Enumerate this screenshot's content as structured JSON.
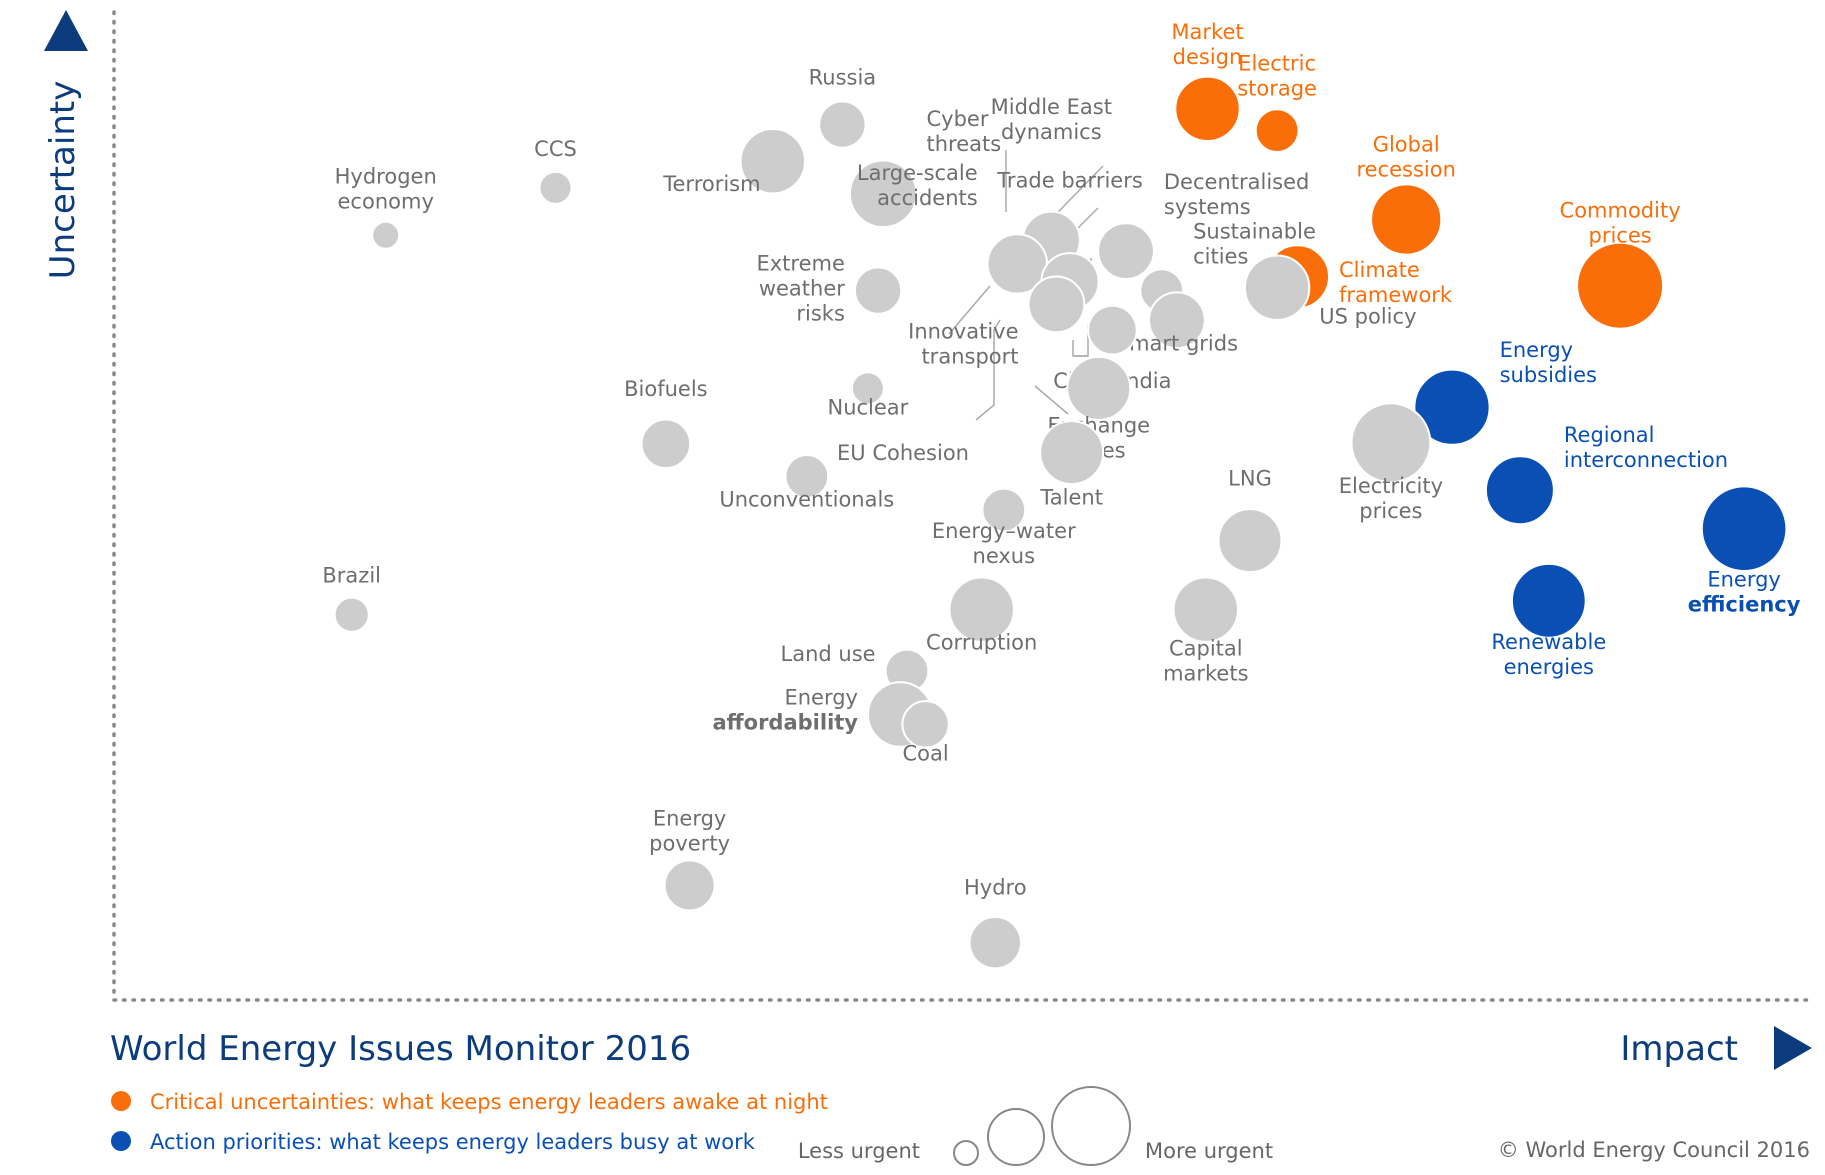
{
  "colors": {
    "neutral": "#cdcdcd",
    "neutral_text": "#6e6e6e",
    "uncertainty": "#fa6e0a",
    "priority": "#0a50b4",
    "axis": "#0c3c7c",
    "dots": "#888888"
  },
  "chart_data": {
    "type": "scatter",
    "title": "World Energy Issues Monitor 2016",
    "xlabel": "Impact",
    "ylabel": "Uncertainty",
    "grid": false,
    "legend_placement": "bottom-left",
    "legend": [
      {
        "name": "Critical uncertainties: what keeps energy leaders awake at night",
        "color": "#fa6e0a"
      },
      {
        "name": "Action priorities: what keeps energy leaders busy at work",
        "color": "#0a50b4"
      }
    ],
    "size_legend": {
      "low": "Less urgent",
      "high": "More urgent"
    },
    "copyright": "© World Energy Council 2016",
    "series": [
      {
        "name": "Critical uncertainties: what keeps energy leaders awake at night",
        "group": "uncertainty",
        "points": [
          {
            "label": [
              "Market",
              "design"
            ],
            "x": 0.644,
            "y": 0.902,
            "s": 0.7
          },
          {
            "label": [
              "Electric",
              "storage"
            ],
            "x": 0.685,
            "y": 0.88,
            "s": 0.4
          },
          {
            "label": [
              "Global",
              "recession"
            ],
            "x": 0.761,
            "y": 0.79,
            "s": 0.78
          },
          {
            "label": [
              "Commodity",
              "prices"
            ],
            "x": 0.887,
            "y": 0.723,
            "s": 1.0
          },
          {
            "label": [
              "Climate",
              "framework"
            ],
            "x": 0.697,
            "y": 0.732,
            "s": 0.68
          }
        ]
      },
      {
        "name": "Action priorities: what keeps energy leaders busy at work",
        "group": "priority",
        "points": [
          {
            "label": [
              "Energy",
              "subsidies"
            ],
            "x": 0.788,
            "y": 0.6,
            "s": 0.85
          },
          {
            "label": [
              "Regional",
              "interconnection"
            ],
            "x": 0.828,
            "y": 0.516,
            "s": 0.75
          },
          {
            "label": [
              "Energy",
              "efficiency"
            ],
            "x": 0.96,
            "y": 0.477,
            "s": 0.98
          },
          {
            "label": [
              "Renewable",
              "energies"
            ],
            "x": 0.845,
            "y": 0.404,
            "s": 0.83
          }
        ]
      },
      {
        "name": "",
        "group": "neutral",
        "points": [
          {
            "label": [
              "Russia"
            ],
            "x": 0.429,
            "y": 0.886,
            "s": 0.45
          },
          {
            "label": [
              "Cyber",
              "threats"
            ],
            "x": 0.453,
            "y": 0.816,
            "s": 0.73
          },
          {
            "label": [
              "Terrorism"
            ],
            "x": 0.388,
            "y": 0.849,
            "s": 0.7
          },
          {
            "label": [
              "CCS"
            ],
            "x": 0.26,
            "y": 0.822,
            "s": 0.25
          },
          {
            "label": [
              "Hydrogen",
              "economy"
            ],
            "x": 0.16,
            "y": 0.774,
            "s": 0.18
          },
          {
            "label": [
              "Middle East",
              "dynamics"
            ],
            "x": 0.552,
            "y": 0.769,
            "s": 0.6
          },
          {
            "label": [
              "Large-scale",
              "accidents"
            ],
            "x": 0.532,
            "y": 0.745,
            "s": 0.63
          },
          {
            "label": [
              "Trade barriers"
            ],
            "x": 0.563,
            "y": 0.727,
            "s": 0.6
          },
          {
            "label": [
              "Innovative",
              "transport"
            ],
            "x": 0.555,
            "y": 0.704,
            "s": 0.58
          },
          {
            "label": [
              "Decentralised",
              "systems"
            ],
            "x": 0.596,
            "y": 0.758,
            "s": 0.58
          },
          {
            "label": [
              "Sustainable",
              "cities"
            ],
            "x": 0.617,
            "y": 0.718,
            "s": 0.4
          },
          {
            "label": [
              "Smart grids"
            ],
            "x": 0.626,
            "y": 0.688,
            "s": 0.58
          },
          {
            "label": [
              "US policy"
            ],
            "x": 0.685,
            "y": 0.721,
            "s": 0.7
          },
          {
            "label": [
              "China India"
            ],
            "x": 0.588,
            "y": 0.678,
            "s": 0.48
          },
          {
            "label": [
              "Exchange",
              "rates"
            ],
            "x": 0.58,
            "y": 0.619,
            "s": 0.68
          },
          {
            "label": [
              "Talent"
            ],
            "x": 0.564,
            "y": 0.554,
            "s": 0.68
          },
          {
            "label": [
              "Extreme",
              "weather",
              "risks"
            ],
            "x": 0.45,
            "y": 0.718,
            "s": 0.45
          },
          {
            "label": [
              "Nuclear"
            ],
            "x": 0.444,
            "y": 0.619,
            "s": 0.25
          },
          {
            "label": [
              "EU Cohesion"
            ],
            "x": 0.52,
            "y": 0.575,
            "s": 0.0
          },
          {
            "label": [
              "Biofuels"
            ],
            "x": 0.325,
            "y": 0.563,
            "s": 0.48
          },
          {
            "label": [
              "Unconventionals"
            ],
            "x": 0.408,
            "y": 0.53,
            "s": 0.4
          },
          {
            "label": [
              "Energy–water",
              "nexus"
            ],
            "x": 0.524,
            "y": 0.496,
            "s": 0.4
          },
          {
            "label": [
              "LNG"
            ],
            "x": 0.669,
            "y": 0.465,
            "s": 0.68
          },
          {
            "label": [
              "Electricity",
              "prices"
            ],
            "x": 0.752,
            "y": 0.564,
            "s": 0.9
          },
          {
            "label": [
              "Capital",
              "markets"
            ],
            "x": 0.643,
            "y": 0.395,
            "s": 0.7
          },
          {
            "label": [
              "Brazil"
            ],
            "x": 0.14,
            "y": 0.39,
            "s": 0.28
          },
          {
            "label": [
              "Corruption"
            ],
            "x": 0.511,
            "y": 0.395,
            "s": 0.7
          },
          {
            "label": [
              "Land use"
            ],
            "x": 0.467,
            "y": 0.333,
            "s": 0.4
          },
          {
            "label": [
              "Energy",
              "affordability"
            ],
            "x": 0.463,
            "y": 0.289,
            "s": 0.7
          },
          {
            "label": [
              "Coal"
            ],
            "x": 0.478,
            "y": 0.279,
            "s": 0.45
          },
          {
            "label": [
              "Energy",
              "poverty"
            ],
            "x": 0.339,
            "y": 0.116,
            "s": 0.5
          },
          {
            "label": [
              "Hydro"
            ],
            "x": 0.519,
            "y": 0.058,
            "s": 0.52
          }
        ]
      }
    ]
  }
}
